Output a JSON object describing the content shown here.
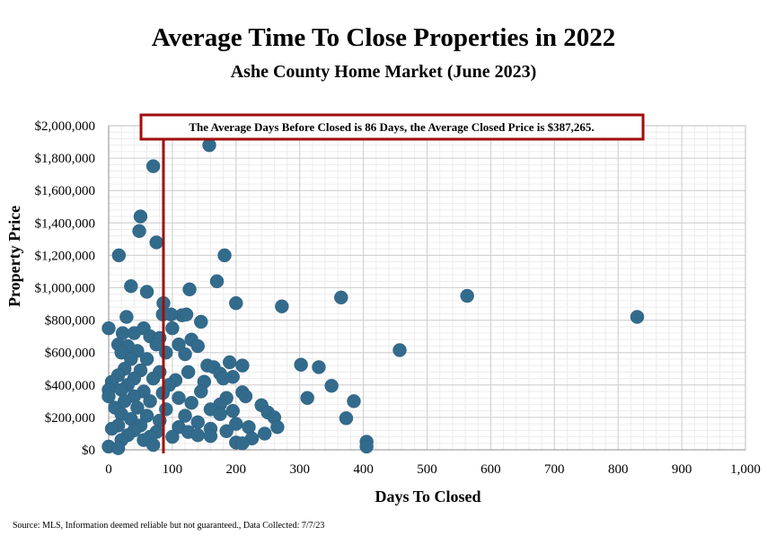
{
  "chart_data": {
    "type": "scatter",
    "title": "Average Time To Close Properties in 2022",
    "subtitle": "Ashe County Home Market (June 2023)",
    "xlabel": "Days To Closed",
    "ylabel": "Property Price",
    "xlim": [
      0,
      1000
    ],
    "ylim": [
      0,
      2000000
    ],
    "x_ticks": [
      0,
      100,
      200,
      300,
      400,
      500,
      600,
      700,
      800,
      900,
      1000
    ],
    "x_tick_labels": [
      "0",
      "100",
      "200",
      "300",
      "400",
      "500",
      "600",
      "700",
      "800",
      "900",
      "1,000"
    ],
    "y_ticks": [
      0,
      200000,
      400000,
      600000,
      800000,
      1000000,
      1200000,
      1400000,
      1600000,
      1800000,
      2000000
    ],
    "y_tick_labels": [
      "$0",
      "$200,000",
      "$400,000",
      "$600,000",
      "$800,000",
      "$1,000,000",
      "$1,200,000",
      "$1,400,000",
      "$1,600,000",
      "$1,800,000",
      "$2,000,000"
    ],
    "grid": true,
    "marker_color": "#336b8c",
    "reference_line": {
      "x": 86,
      "color": "#a10d0d"
    },
    "annotation": "The Average Days Before Closed is 86 Days, the Average Closed Price is $387,265.",
    "series": [
      {
        "points": [
          [
            158,
            1880000
          ],
          [
            70,
            1750000
          ],
          [
            50,
            1440000
          ],
          [
            48,
            1350000
          ],
          [
            75,
            1280000
          ],
          [
            16,
            1200000
          ],
          [
            182,
            1200000
          ],
          [
            170,
            1040000
          ],
          [
            35,
            1010000
          ],
          [
            127,
            990000
          ],
          [
            60,
            975000
          ],
          [
            365,
            940000
          ],
          [
            563,
            950000
          ],
          [
            200,
            905000
          ],
          [
            272,
            885000
          ],
          [
            86,
            905000
          ],
          [
            830,
            820000
          ],
          [
            115,
            830000
          ],
          [
            122,
            835000
          ],
          [
            98,
            835000
          ],
          [
            85,
            835000
          ],
          [
            28,
            820000
          ],
          [
            145,
            790000
          ],
          [
            0,
            750000
          ],
          [
            55,
            750000
          ],
          [
            100,
            750000
          ],
          [
            22,
            720000
          ],
          [
            40,
            720000
          ],
          [
            65,
            700000
          ],
          [
            80,
            690000
          ],
          [
            130,
            680000
          ],
          [
            15,
            650000
          ],
          [
            30,
            640000
          ],
          [
            75,
            650000
          ],
          [
            110,
            650000
          ],
          [
            140,
            640000
          ],
          [
            457,
            615000
          ],
          [
            20,
            600000
          ],
          [
            45,
            610000
          ],
          [
            90,
            600000
          ],
          [
            120,
            590000
          ],
          [
            60,
            560000
          ],
          [
            35,
            560000
          ],
          [
            155,
            520000
          ],
          [
            190,
            540000
          ],
          [
            165,
            510000
          ],
          [
            210,
            520000
          ],
          [
            302,
            525000
          ],
          [
            330,
            510000
          ],
          [
            25,
            500000
          ],
          [
            50,
            490000
          ],
          [
            80,
            480000
          ],
          [
            125,
            480000
          ],
          [
            175,
            470000
          ],
          [
            195,
            450000
          ],
          [
            15,
            460000
          ],
          [
            40,
            440000
          ],
          [
            70,
            440000
          ],
          [
            105,
            430000
          ],
          [
            150,
            420000
          ],
          [
            180,
            440000
          ],
          [
            5,
            420000
          ],
          [
            30,
            400000
          ],
          [
            95,
            400000
          ],
          [
            350,
            395000
          ],
          [
            0,
            370000
          ],
          [
            20,
            370000
          ],
          [
            55,
            360000
          ],
          [
            85,
            350000
          ],
          [
            145,
            360000
          ],
          [
            210,
            355000
          ],
          [
            0,
            330000
          ],
          [
            40,
            330000
          ],
          [
            110,
            320000
          ],
          [
            185,
            320000
          ],
          [
            312,
            320000
          ],
          [
            385,
            300000
          ],
          [
            215,
            330000
          ],
          [
            25,
            300000
          ],
          [
            65,
            300000
          ],
          [
            130,
            290000
          ],
          [
            175,
            280000
          ],
          [
            240,
            275000
          ],
          [
            10,
            260000
          ],
          [
            45,
            260000
          ],
          [
            90,
            250000
          ],
          [
            160,
            250000
          ],
          [
            195,
            240000
          ],
          [
            250,
            230000
          ],
          [
            20,
            220000
          ],
          [
            60,
            210000
          ],
          [
            120,
            210000
          ],
          [
            175,
            220000
          ],
          [
            260,
            200000
          ],
          [
            373,
            195000
          ],
          [
            35,
            190000
          ],
          [
            80,
            180000
          ],
          [
            140,
            170000
          ],
          [
            200,
            160000
          ],
          [
            15,
            150000
          ],
          [
            50,
            150000
          ],
          [
            110,
            140000
          ],
          [
            160,
            130000
          ],
          [
            220,
            140000
          ],
          [
            265,
            140000
          ],
          [
            5,
            130000
          ],
          [
            40,
            120000
          ],
          [
            75,
            110000
          ],
          [
            125,
            110000
          ],
          [
            185,
            115000
          ],
          [
            245,
            100000
          ],
          [
            30,
            90000
          ],
          [
            65,
            80000
          ],
          [
            100,
            80000
          ],
          [
            140,
            90000
          ],
          [
            160,
            85000
          ],
          [
            225,
            70000
          ],
          [
            20,
            60000
          ],
          [
            55,
            60000
          ],
          [
            200,
            45000
          ],
          [
            405,
            50000
          ],
          [
            210,
            40000
          ],
          [
            70,
            30000
          ],
          [
            0,
            20000
          ],
          [
            15,
            10000
          ],
          [
            405,
            20000
          ]
        ]
      }
    ]
  },
  "footer": {
    "source": "Source: MLS, Information deemed reliable but not guaranteed., Data Collected: 7/7/23"
  }
}
